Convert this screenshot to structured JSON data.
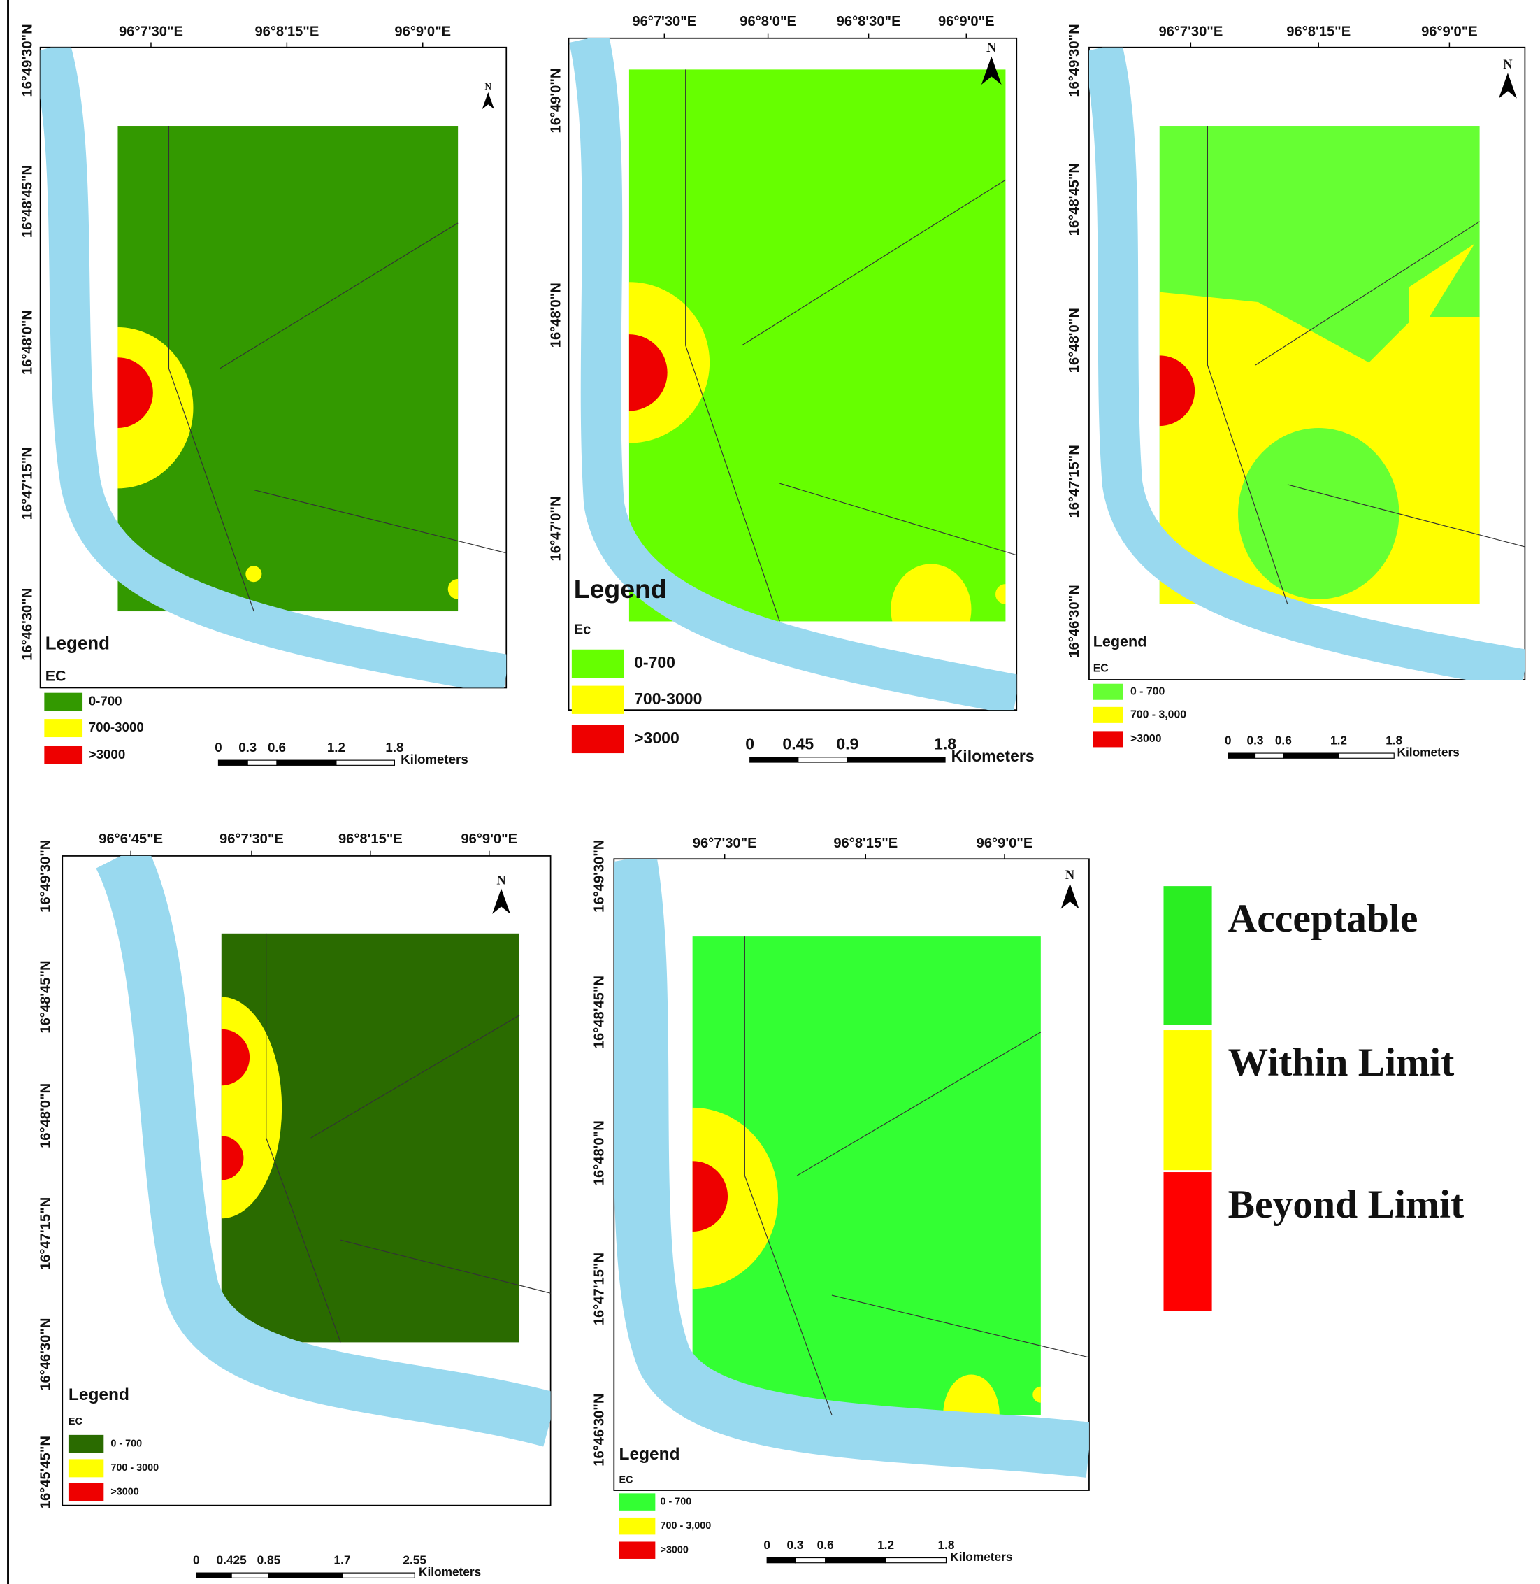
{
  "maps": [
    {
      "lon_labels": [
        "96°7'30\"E",
        "96°8'15\"E",
        "96°9'0\"E"
      ],
      "lat_labels": [
        "16°49'30\"N",
        "16°48'45\"N",
        "16°48'0\"N",
        "16°47'15\"N",
        "16°46'30\"N"
      ],
      "north": "N",
      "legend": {
        "title": "Legend",
        "field": "EC",
        "items": [
          "0-700",
          "700-3000",
          ">3000"
        ]
      },
      "scale": {
        "ticks": [
          "0",
          "0.3",
          "0.6",
          "1.2",
          "1.8"
        ],
        "unit": "Kilometers"
      }
    },
    {
      "lon_labels": [
        "96°7'30\"E",
        "96°8'0\"E",
        "96°8'30\"E",
        "96°9'0\"E"
      ],
      "lat_labels": [
        "16°49'0\"N",
        "16°48'0\"N",
        "16°47'0\"N"
      ],
      "north": "N",
      "legend": {
        "title": "Legend",
        "field": "Ec",
        "items": [
          "0-700",
          "700-3000",
          ">3000"
        ]
      },
      "scale": {
        "ticks": [
          "0",
          "0.45",
          "0.9",
          "1.8"
        ],
        "unit": "Kilometers"
      }
    },
    {
      "lon_labels": [
        "96°7'30\"E",
        "96°8'15\"E",
        "96°9'0\"E"
      ],
      "lat_labels": [
        "16°49'30\"N",
        "16°48'45\"N",
        "16°48'0\"N",
        "16°47'15\"N",
        "16°46'30\"N"
      ],
      "north": "N",
      "legend": {
        "title": "Legend",
        "field": "EC",
        "items": [
          "0 - 700",
          "700 - 3,000",
          ">3000"
        ]
      },
      "scale": {
        "ticks": [
          "0",
          "0.3",
          "0.6",
          "1.2",
          "1.8"
        ],
        "unit": "Kilometers"
      }
    },
    {
      "lon_labels": [
        "96°6'45\"E",
        "96°7'30\"E",
        "96°8'15\"E",
        "96°9'0\"E"
      ],
      "lat_labels": [
        "16°49'30\"N",
        "16°48'45\"N",
        "16°48'0\"N",
        "16°47'15\"N",
        "16°46'30\"N",
        "16°45'45\"N"
      ],
      "north": "N",
      "legend": {
        "title": "Legend",
        "field": "EC",
        "items": [
          "0 - 700",
          "700 - 3000",
          ">3000"
        ]
      },
      "scale": {
        "ticks": [
          "0",
          "0.425",
          "0.85",
          "1.7",
          "2.55"
        ],
        "unit": "Kilometers"
      }
    },
    {
      "lon_labels": [
        "96°7'30\"E",
        "96°8'15\"E",
        "96°9'0\"E"
      ],
      "lat_labels": [
        "16°49'30\"N",
        "16°48'45\"N",
        "16°48'0\"N",
        "16°47'15\"N",
        "16°46'30\"N"
      ],
      "north": "N",
      "legend": {
        "title": "Legend",
        "field": "EC",
        "items": [
          "0 - 700",
          "700 - 3,000",
          ">3000"
        ]
      },
      "scale": {
        "ticks": [
          "0",
          "0.3",
          "0.6",
          "1.2",
          "1.8"
        ],
        "unit": "Kilometers"
      }
    }
  ],
  "key": {
    "items": [
      "Acceptable",
      "Within Limit",
      "Beyond Limit"
    ]
  }
}
